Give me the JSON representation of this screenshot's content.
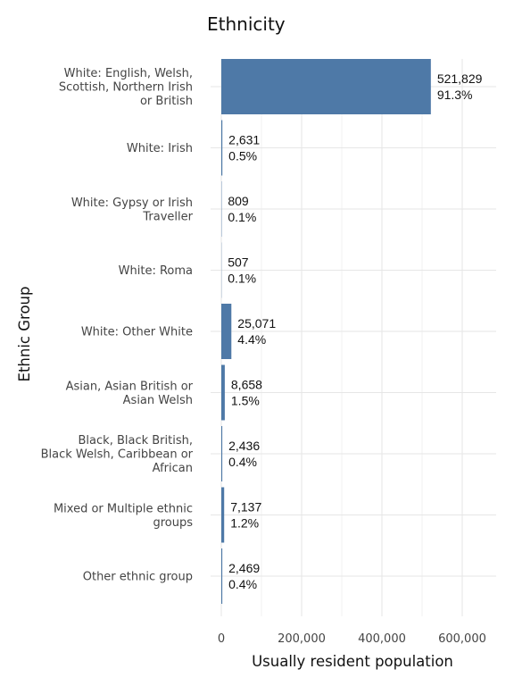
{
  "chart_data": {
    "type": "bar",
    "orientation": "horizontal",
    "title": "Ethnicity",
    "xlabel": "Usually resident population",
    "ylabel": "Ethnic Group",
    "categories": [
      [
        "White: English, Welsh,",
        "Scottish, Northern Irish",
        "or British"
      ],
      [
        "White: Irish"
      ],
      [
        "White: Gypsy or Irish",
        "Traveller"
      ],
      [
        "White: Roma"
      ],
      [
        "White: Other White"
      ],
      [
        "Asian, Asian British or",
        "Asian Welsh"
      ],
      [
        "Black, Black British,",
        "Black Welsh, Caribbean or",
        "African"
      ],
      [
        "Mixed or Multiple ethnic",
        "groups"
      ],
      [
        "Other ethnic group"
      ]
    ],
    "values": [
      521829,
      2631,
      809,
      507,
      25071,
      8658,
      2436,
      7137,
      2469
    ],
    "value_labels": [
      "521,829",
      "2,631",
      "809",
      "507",
      "25,071",
      "8,658",
      "2,436",
      "7,137",
      "2,469"
    ],
    "percent_labels": [
      "91.3%",
      "0.5%",
      "0.1%",
      "0.1%",
      "4.4%",
      "1.5%",
      "0.4%",
      "1.2%",
      "0.4%"
    ],
    "xlim": [
      0,
      680000
    ],
    "xticks": [
      0,
      200000,
      400000,
      600000
    ],
    "xtick_labels": [
      "0",
      "200,000",
      "400,000",
      "600,000"
    ],
    "bar_color": "#4e79a7",
    "grid": true,
    "legend": "none"
  }
}
